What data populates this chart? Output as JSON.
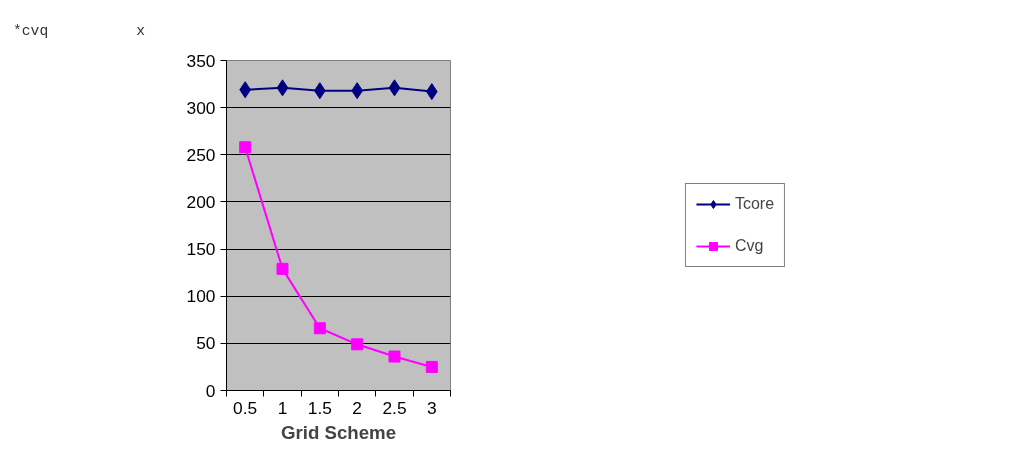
{
  "chart_data": {
    "type": "line",
    "xlabel": "Grid Scheme",
    "annotations": [
      "*cvq          x"
    ],
    "categories": [
      "0.5",
      "1",
      "1.5",
      "2",
      "2.5",
      "3"
    ],
    "series": [
      {
        "name": "Tcore",
        "color": "#000080",
        "marker": "diamond",
        "values": [
          319,
          321,
          318,
          318,
          321,
          317
        ]
      },
      {
        "name": "Cvg",
        "color": "#ff00ff",
        "marker": "square",
        "values": [
          258,
          129,
          66,
          49,
          36,
          25
        ]
      }
    ],
    "ylim": [
      0,
      350
    ],
    "yticks": [
      0,
      50,
      100,
      150,
      200,
      250,
      300,
      350
    ],
    "grid": "y",
    "legend": "right",
    "line_style": "solid"
  }
}
